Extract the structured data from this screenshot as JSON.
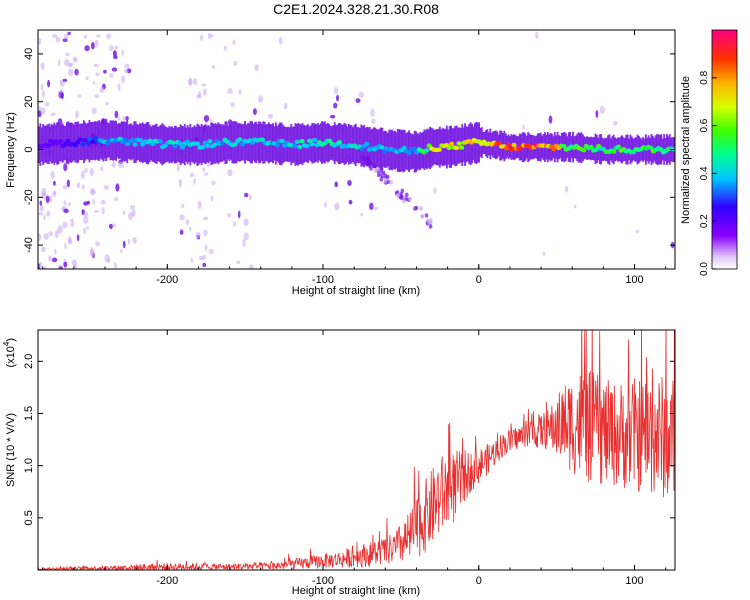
{
  "title": "C2E1.2024.328.21.30.R08",
  "colors": {
    "signal": "#e83030",
    "spectrum_core": "#7010e0",
    "spectrum_faint": "#c8a8f0"
  },
  "chart_data": [
    {
      "type": "heatmap",
      "xlabel": "Height of straight line (km)",
      "ylabel": "Frequency (Hz)",
      "xlim": [
        -283,
        126
      ],
      "ylim": [
        -50,
        50
      ],
      "x_ticks": [
        -200,
        -100,
        0,
        100
      ],
      "x_tick_labels": [
        "-200",
        "-100",
        "0",
        "100"
      ],
      "y_ticks": [
        -40,
        -20,
        0,
        20,
        40
      ],
      "y_tick_labels": [
        "-40",
        "-20",
        "0",
        "20",
        "40"
      ],
      "colorbar": {
        "label": "Normalized spectral amplitude",
        "range": [
          0,
          1
        ],
        "ticks": [
          0.0,
          0.2,
          0.4,
          0.6,
          0.8
        ],
        "tick_labels": [
          "0.0",
          "0.2",
          "0.4",
          "0.6",
          "0.8"
        ],
        "colormap": "rainbow"
      },
      "ridge": {
        "x": [
          -283,
          -260,
          -240,
          -220,
          -200,
          -180,
          -160,
          -140,
          -120,
          -100,
          -80,
          -60,
          -40,
          -30,
          -20,
          -10,
          0,
          20,
          40,
          60,
          80,
          100,
          126
        ],
        "frequency": [
          2,
          3,
          4,
          3,
          2,
          2,
          3,
          3,
          2,
          3,
          2,
          0,
          -1,
          1,
          1,
          2,
          3,
          1,
          1,
          1,
          0,
          0,
          0
        ],
        "amplitude": [
          0.2,
          0.25,
          0.4,
          0.45,
          0.45,
          0.4,
          0.45,
          0.45,
          0.45,
          0.5,
          0.45,
          0.4,
          0.4,
          0.7,
          0.75,
          0.8,
          0.75,
          0.95,
          0.95,
          0.6,
          0.55,
          0.6,
          0.55
        ]
      }
    },
    {
      "type": "line",
      "xlabel": "Height of straight line (km)",
      "ylabel": "SNR (10 * V/V)",
      "y_multiplier_label": "(x10",
      "y_multiplier_exponent": "4",
      "y_multiplier_close": ")",
      "xlim": [
        -283,
        126
      ],
      "ylim": [
        0,
        2.3
      ],
      "x_ticks": [
        -200,
        -100,
        0,
        100
      ],
      "x_tick_labels": [
        "-200",
        "-100",
        "0",
        "100"
      ],
      "y_ticks": [
        0.5,
        1.0,
        1.5,
        2.0
      ],
      "y_tick_labels": [
        "0.5",
        "1.0",
        "1.5",
        "2.0"
      ],
      "series": [
        {
          "x": [
            -283,
            -240,
            -200,
            -160,
            -130,
            -110,
            -90,
            -70,
            -55,
            -45,
            -35,
            -25,
            -15,
            -5,
            5,
            15,
            30,
            45,
            55,
            65,
            75,
            85,
            100,
            110,
            126
          ],
          "values": [
            0.01,
            0.02,
            0.03,
            0.03,
            0.04,
            0.07,
            0.1,
            0.15,
            0.2,
            0.3,
            0.5,
            0.7,
            0.8,
            0.95,
            1.05,
            1.2,
            1.3,
            1.35,
            1.4,
            1.4,
            1.35,
            1.3,
            1.3,
            1.3,
            1.25
          ],
          "spread": [
            0.01,
            0.02,
            0.04,
            0.03,
            0.04,
            0.06,
            0.08,
            0.12,
            0.15,
            0.25,
            0.35,
            0.4,
            0.35,
            0.2,
            0.15,
            0.12,
            0.12,
            0.2,
            0.4,
            0.55,
            0.55,
            0.5,
            0.55,
            0.6,
            0.6
          ]
        }
      ]
    }
  ]
}
